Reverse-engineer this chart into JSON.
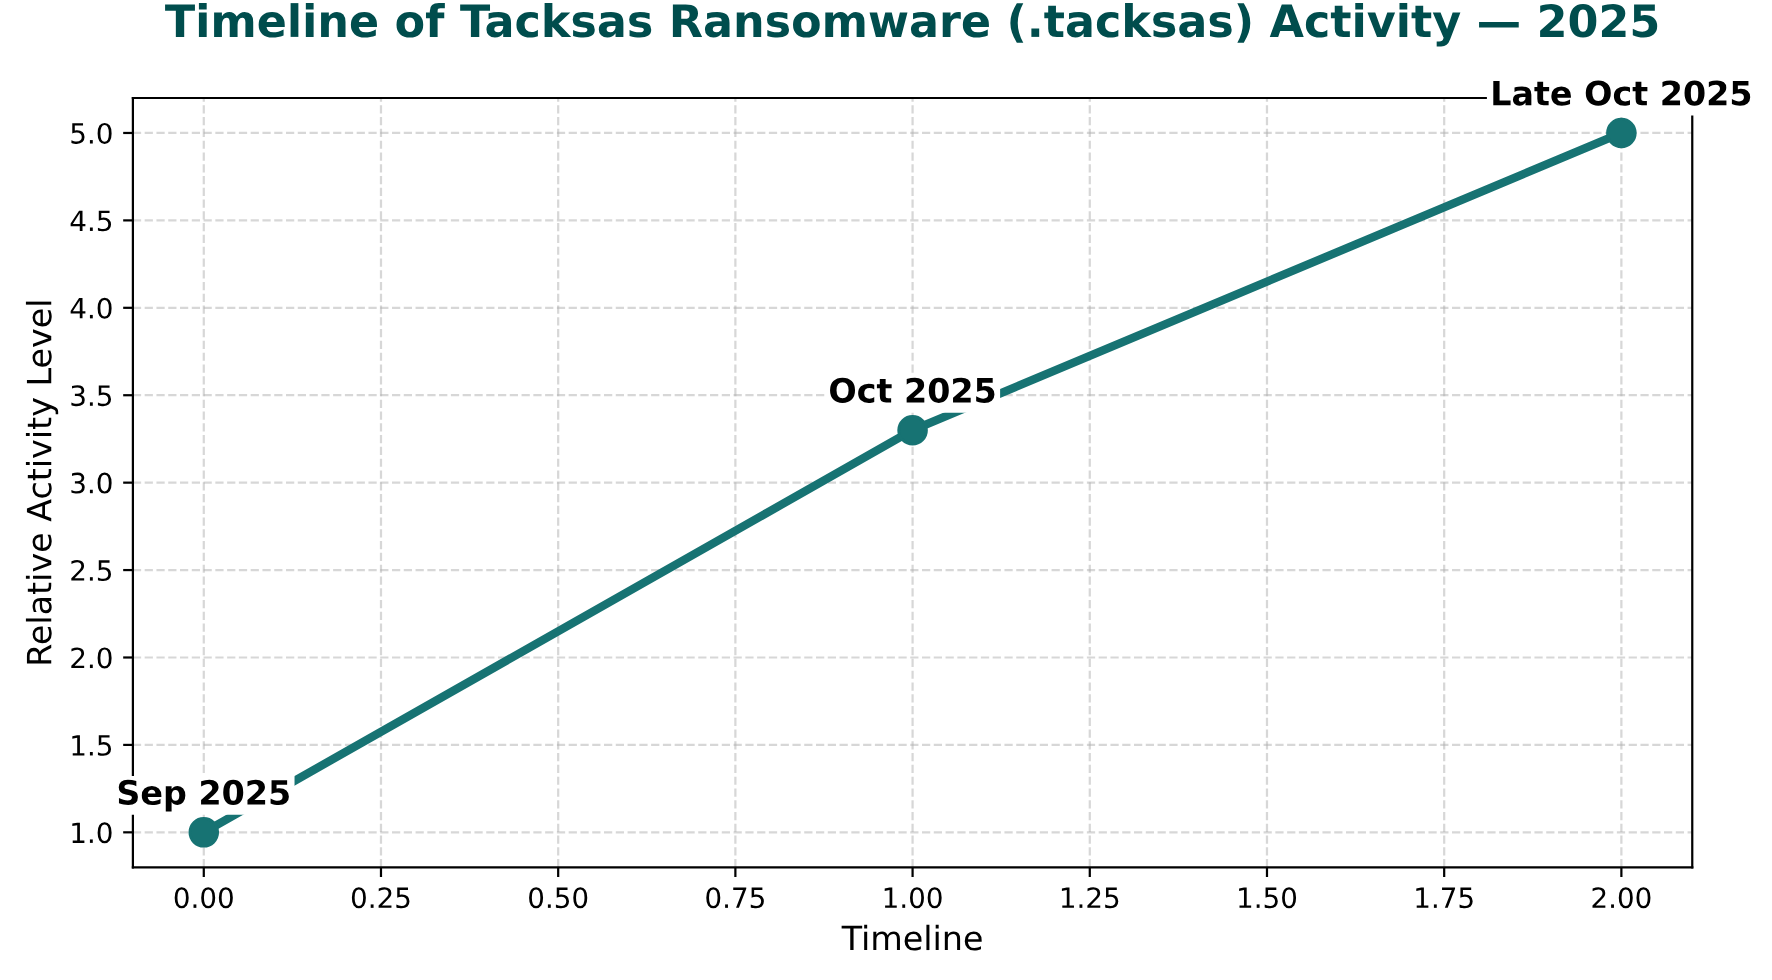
{
  "chart_data": {
    "type": "line",
    "title": "Timeline of Tacksas Ransomware (.tacksas) Activity — 2025",
    "xlabel": "Timeline",
    "ylabel": "Relative Activity Level",
    "x": [
      0,
      1,
      2
    ],
    "series": [
      {
        "color": "#177373",
        "values": [
          1.0,
          3.3,
          5.0
        ]
      }
    ],
    "annotations": [
      {
        "text": "Sep 2025",
        "x": 0,
        "y": 1.0
      },
      {
        "text": "Oct 2025",
        "x": 1,
        "y": 3.3
      },
      {
        "text": "Late Oct 2025",
        "x": 2,
        "y": 5.0
      }
    ],
    "xlim": [
      -0.1,
      2.1
    ],
    "xticks": [
      {
        "value": 0,
        "label": "0.00"
      },
      {
        "value": 0.25,
        "label": "0.25"
      },
      {
        "value": 0.5,
        "label": "0.50"
      },
      {
        "value": 0.75,
        "label": "0.75"
      },
      {
        "value": 1,
        "label": "1.00"
      },
      {
        "value": 1.25,
        "label": "1.25"
      },
      {
        "value": 1.5,
        "label": "1.50"
      },
      {
        "value": 1.75,
        "label": "1.75"
      },
      {
        "value": 2,
        "label": "2.00"
      }
    ],
    "ylim": [
      0.8,
      5.2
    ],
    "yticks": [
      {
        "value": 1,
        "label": "1.0"
      },
      {
        "value": 1.5,
        "label": "1.5"
      },
      {
        "value": 2,
        "label": "2.0"
      },
      {
        "value": 2.5,
        "label": "2.5"
      },
      {
        "value": 3,
        "label": "3.0"
      },
      {
        "value": 3.5,
        "label": "3.5"
      },
      {
        "value": 4,
        "label": "4.0"
      },
      {
        "value": 4.5,
        "label": "4.5"
      },
      {
        "value": 5,
        "label": "5.0"
      }
    ],
    "grid": true,
    "marker": "circle",
    "line_style": "solid",
    "legend": false
  }
}
